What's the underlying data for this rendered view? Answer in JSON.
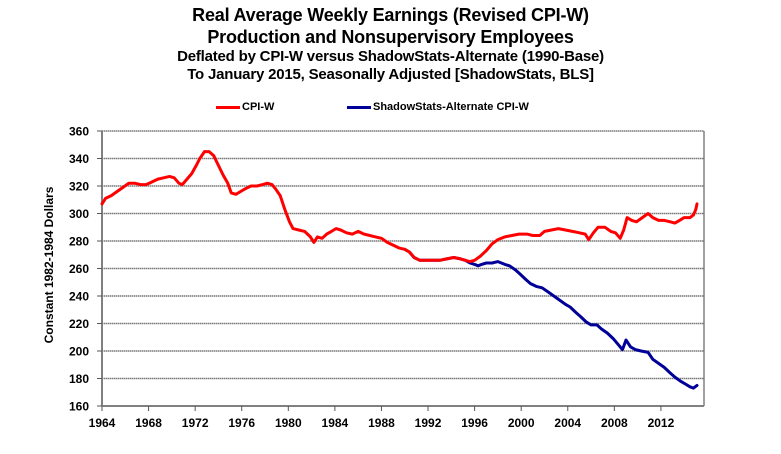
{
  "chart_data": {
    "type": "line",
    "title": "Real Average Weekly Earnings (Revised CPI-W)",
    "subtitle_lines": [
      "Production and Nonsupervisory Employees",
      "Deflated by CPI-W versus ShadowStats-Alternate (1990-Base)",
      "To January 2015, Seasonally Adjusted [ShadowStats, BLS]"
    ],
    "xlabel": "",
    "ylabel": "Constant 1982-1984 Dollars",
    "xlim": [
      1964,
      2015.7
    ],
    "ylim": [
      160,
      360
    ],
    "x_ticks": [
      1964,
      1968,
      1972,
      1976,
      1980,
      1984,
      1988,
      1992,
      1996,
      2000,
      2004,
      2008,
      2012
    ],
    "y_ticks": [
      160,
      180,
      200,
      220,
      240,
      260,
      280,
      300,
      320,
      340,
      360
    ],
    "grid": "horizontal",
    "legend_position": "top",
    "series": [
      {
        "name": "CPI-W",
        "color": "#ff0000",
        "points": [
          [
            1964.0,
            307
          ],
          [
            1964.3,
            311
          ],
          [
            1964.8,
            313
          ],
          [
            1965.3,
            316
          ],
          [
            1965.8,
            319
          ],
          [
            1966.3,
            322
          ],
          [
            1966.8,
            322
          ],
          [
            1967.3,
            321
          ],
          [
            1967.8,
            321
          ],
          [
            1968.3,
            323
          ],
          [
            1968.8,
            325
          ],
          [
            1969.3,
            326
          ],
          [
            1969.8,
            327
          ],
          [
            1970.2,
            326
          ],
          [
            1970.6,
            322
          ],
          [
            1970.9,
            321
          ],
          [
            1971.3,
            325
          ],
          [
            1971.7,
            329
          ],
          [
            1972.1,
            335
          ],
          [
            1972.4,
            340
          ],
          [
            1972.8,
            345
          ],
          [
            1973.2,
            345
          ],
          [
            1973.6,
            342
          ],
          [
            1974.0,
            335
          ],
          [
            1974.4,
            328
          ],
          [
            1974.8,
            322
          ],
          [
            1975.1,
            315
          ],
          [
            1975.5,
            314
          ],
          [
            1975.9,
            316
          ],
          [
            1976.3,
            318
          ],
          [
            1976.8,
            320
          ],
          [
            1977.3,
            320
          ],
          [
            1977.8,
            321
          ],
          [
            1978.2,
            322
          ],
          [
            1978.6,
            321
          ],
          [
            1978.9,
            318
          ],
          [
            1979.3,
            313
          ],
          [
            1979.7,
            303
          ],
          [
            1980.1,
            294
          ],
          [
            1980.4,
            289
          ],
          [
            1980.9,
            288
          ],
          [
            1981.4,
            287
          ],
          [
            1981.9,
            283
          ],
          [
            1982.2,
            279
          ],
          [
            1982.5,
            283
          ],
          [
            1982.9,
            282
          ],
          [
            1983.3,
            285
          ],
          [
            1983.7,
            287
          ],
          [
            1984.1,
            289
          ],
          [
            1984.5,
            288
          ],
          [
            1985.0,
            286
          ],
          [
            1985.5,
            285
          ],
          [
            1986.0,
            287
          ],
          [
            1986.5,
            285
          ],
          [
            1987.0,
            284
          ],
          [
            1987.5,
            283
          ],
          [
            1988.0,
            282
          ],
          [
            1988.5,
            279
          ],
          [
            1989.0,
            277
          ],
          [
            1989.5,
            275
          ],
          [
            1990.0,
            274
          ],
          [
            1990.4,
            272
          ],
          [
            1990.8,
            268
          ],
          [
            1991.3,
            266
          ],
          [
            1991.8,
            266
          ],
          [
            1992.4,
            266
          ],
          [
            1993.0,
            266
          ],
          [
            1993.6,
            267
          ],
          [
            1994.2,
            268
          ],
          [
            1994.8,
            267
          ],
          [
            1995.2,
            266
          ],
          [
            1995.6,
            265
          ],
          [
            1996.0,
            266
          ],
          [
            1996.5,
            269
          ],
          [
            1997.0,
            273
          ],
          [
            1997.5,
            278
          ],
          [
            1998.0,
            281
          ],
          [
            1998.6,
            283
          ],
          [
            1999.2,
            284
          ],
          [
            1999.8,
            285
          ],
          [
            2000.5,
            285
          ],
          [
            2001.0,
            284
          ],
          [
            2001.6,
            284
          ],
          [
            2002.0,
            287
          ],
          [
            2002.6,
            288
          ],
          [
            2003.2,
            289
          ],
          [
            2003.8,
            288
          ],
          [
            2004.4,
            287
          ],
          [
            2005.0,
            286
          ],
          [
            2005.5,
            285
          ],
          [
            2005.8,
            281
          ],
          [
            2006.2,
            286
          ],
          [
            2006.6,
            290
          ],
          [
            2007.2,
            290
          ],
          [
            2007.7,
            287
          ],
          [
            2008.1,
            286
          ],
          [
            2008.5,
            282
          ],
          [
            2008.8,
            288
          ],
          [
            2009.1,
            297
          ],
          [
            2009.5,
            295
          ],
          [
            2009.9,
            294
          ],
          [
            2010.4,
            297
          ],
          [
            2010.9,
            300
          ],
          [
            2011.3,
            297
          ],
          [
            2011.8,
            295
          ],
          [
            2012.3,
            295
          ],
          [
            2012.8,
            294
          ],
          [
            2013.2,
            293
          ],
          [
            2013.6,
            295
          ],
          [
            2014.0,
            297
          ],
          [
            2014.5,
            297
          ],
          [
            2014.8,
            299
          ],
          [
            2015.0,
            303
          ],
          [
            2015.1,
            307
          ]
        ]
      },
      {
        "name": "ShadowStats-Alternate CPI-W",
        "color": "#000099",
        "points": [
          [
            1990.0,
            274
          ],
          [
            1990.4,
            272
          ],
          [
            1990.8,
            268
          ],
          [
            1991.3,
            266
          ],
          [
            1991.8,
            266
          ],
          [
            1992.4,
            266
          ],
          [
            1993.0,
            266
          ],
          [
            1993.6,
            267
          ],
          [
            1994.2,
            268
          ],
          [
            1994.8,
            267
          ],
          [
            1995.2,
            266
          ],
          [
            1995.6,
            264
          ],
          [
            1996.0,
            263
          ],
          [
            1996.3,
            262
          ],
          [
            1996.6,
            263
          ],
          [
            1997.0,
            264
          ],
          [
            1997.5,
            264
          ],
          [
            1998.0,
            265
          ],
          [
            1998.6,
            263
          ],
          [
            1999.0,
            262
          ],
          [
            1999.5,
            259
          ],
          [
            1999.9,
            256
          ],
          [
            2000.4,
            252
          ],
          [
            2000.8,
            249
          ],
          [
            2001.3,
            247
          ],
          [
            2001.8,
            246
          ],
          [
            2002.3,
            243
          ],
          [
            2002.8,
            240
          ],
          [
            2003.3,
            237
          ],
          [
            2003.8,
            234
          ],
          [
            2004.2,
            232
          ],
          [
            2004.7,
            228
          ],
          [
            2005.1,
            225
          ],
          [
            2005.6,
            221
          ],
          [
            2006.0,
            219
          ],
          [
            2006.5,
            219
          ],
          [
            2006.9,
            216
          ],
          [
            2007.4,
            213
          ],
          [
            2007.9,
            209
          ],
          [
            2008.3,
            205
          ],
          [
            2008.7,
            201
          ],
          [
            2009.0,
            208
          ],
          [
            2009.4,
            203
          ],
          [
            2009.8,
            201
          ],
          [
            2010.3,
            200
          ],
          [
            2010.9,
            199
          ],
          [
            2011.3,
            194
          ],
          [
            2011.8,
            191
          ],
          [
            2012.3,
            188
          ],
          [
            2012.8,
            184
          ],
          [
            2013.2,
            181
          ],
          [
            2013.7,
            178
          ],
          [
            2014.1,
            176
          ],
          [
            2014.5,
            174
          ],
          [
            2014.8,
            173
          ],
          [
            2015.1,
            175
          ]
        ]
      }
    ]
  }
}
